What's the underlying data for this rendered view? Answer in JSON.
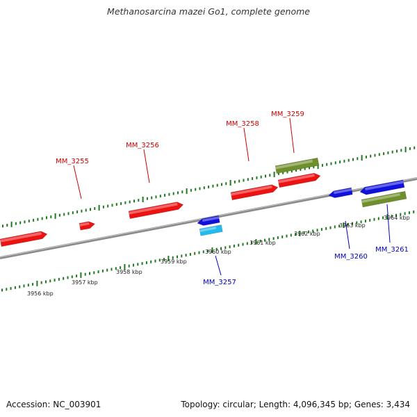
{
  "title": "Methanosarcina mazei Go1, complete genome",
  "footer": {
    "accession": "Accession: NC_003901",
    "summary": "Topology: circular; Length: 4,096,345 bp; Genes: 3,434"
  },
  "colors": {
    "forward_gene": "#ee1111",
    "reverse_gene": "#1111dd",
    "rna_light": "#22bbee",
    "rna_olive": "#6f8f2a",
    "backbone": "#8a8a8a",
    "ticks": "#1f7a1f",
    "forward_label": "#cc0000",
    "reverse_label": "#0000bb"
  },
  "ruler_labels": [
    "3956 kbp",
    "3957 kbp",
    "3958 kbp",
    "3959 kbp",
    "3960 kbp",
    "3961 kbp",
    "3962 kbp",
    "3963 kbp",
    "3964 kbp"
  ],
  "gene_labels": [
    {
      "text": "MM_3255",
      "strand": "forward"
    },
    {
      "text": "MM_3256",
      "strand": "forward"
    },
    {
      "text": "MM_3258",
      "strand": "forward"
    },
    {
      "text": "MM_3259",
      "strand": "forward"
    },
    {
      "text": "MM_3257",
      "strand": "reverse"
    },
    {
      "text": "MM_3260",
      "strand": "reverse"
    },
    {
      "text": "MM_3261",
      "strand": "reverse"
    }
  ]
}
